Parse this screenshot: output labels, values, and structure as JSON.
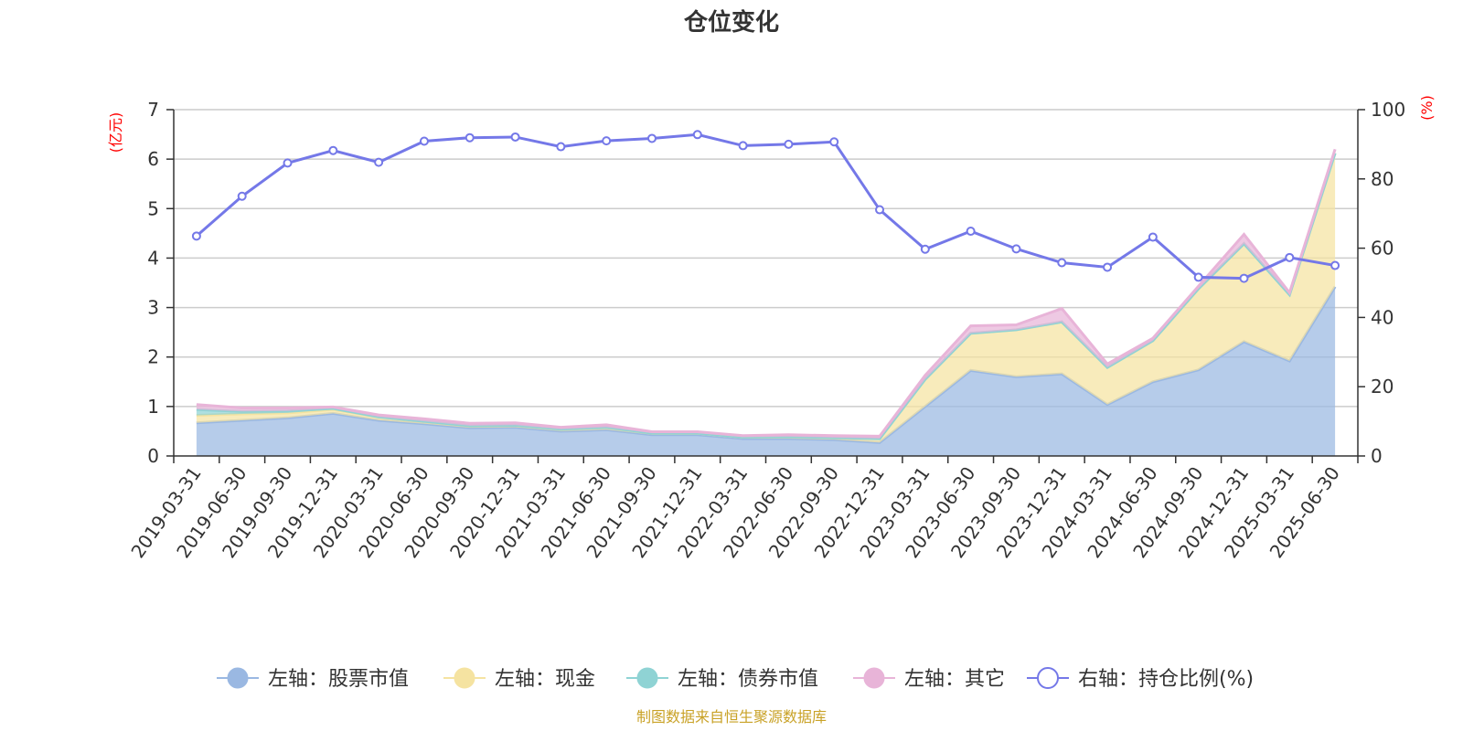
{
  "chart_data": {
    "type": "area",
    "title": "仓位变化",
    "left_unit": "(亿元)",
    "right_unit": "(%)",
    "source": "制图数据来自恒生聚源数据库",
    "ylim_left": [
      0,
      7
    ],
    "yticks_left": [
      "0",
      "1",
      "2",
      "3",
      "4",
      "5",
      "6",
      "7"
    ],
    "ylim_right": [
      0,
      100
    ],
    "yticks_right": [
      "0",
      "20",
      "40",
      "60",
      "80",
      "100"
    ],
    "grid": true,
    "legend_position": "bottom",
    "categories": [
      "2019-03-31",
      "2019-06-30",
      "2019-09-30",
      "2019-12-31",
      "2020-03-31",
      "2020-06-30",
      "2020-09-30",
      "2020-12-31",
      "2021-03-31",
      "2021-06-30",
      "2021-09-30",
      "2021-12-31",
      "2022-03-31",
      "2022-06-30",
      "2022-09-30",
      "2022-12-31",
      "2023-03-31",
      "2023-06-30",
      "2023-09-30",
      "2023-12-31",
      "2024-03-31",
      "2024-06-30",
      "2024-09-30",
      "2024-12-31",
      "2025-03-31",
      "2025-06-30"
    ],
    "series": [
      {
        "name": "左轴：股票市值",
        "axis": "left",
        "stack": true,
        "color": "#9ab8e2",
        "values": [
          0.67,
          0.72,
          0.77,
          0.86,
          0.72,
          0.65,
          0.57,
          0.58,
          0.5,
          0.53,
          0.43,
          0.43,
          0.35,
          0.35,
          0.33,
          0.27,
          1.0,
          1.73,
          1.6,
          1.66,
          1.04,
          1.5,
          1.74,
          2.31,
          1.92,
          3.42
        ]
      },
      {
        "name": "左轴：现金",
        "axis": "left",
        "stack": true,
        "color": "#f5e3a1",
        "values": [
          0.15,
          0.13,
          0.1,
          0.08,
          0.07,
          0.05,
          0.04,
          0.04,
          0.04,
          0.05,
          0.03,
          0.03,
          0.03,
          0.04,
          0.04,
          0.08,
          0.55,
          0.75,
          0.95,
          1.05,
          0.75,
          0.83,
          1.64,
          1.98,
          1.34,
          2.7
        ]
      },
      {
        "name": "左轴：债券市值",
        "axis": "left",
        "stack": true,
        "color": "#8fd3d4",
        "values": [
          0.12,
          0.05,
          0.04,
          0.02,
          0.0,
          0.0,
          0.0,
          0.0,
          0.0,
          0.0,
          0.0,
          0.0,
          0.0,
          0.0,
          0.0,
          0.0,
          0.0,
          0.0,
          0.0,
          0.0,
          0.0,
          0.0,
          0.0,
          0.0,
          0.0,
          0.0
        ]
      },
      {
        "name": "左轴：其它",
        "axis": "left",
        "stack": true,
        "color": "#e8b4d8",
        "values": [
          0.1,
          0.07,
          0.06,
          0.03,
          0.04,
          0.05,
          0.05,
          0.05,
          0.04,
          0.05,
          0.03,
          0.03,
          0.03,
          0.04,
          0.04,
          0.05,
          0.08,
          0.15,
          0.1,
          0.27,
          0.07,
          0.05,
          0.05,
          0.19,
          0.04,
          0.08
        ]
      },
      {
        "name": "右轴：持仓比例(%)",
        "axis": "right",
        "stack": false,
        "color": "#7478e8",
        "values": [
          63.5,
          75.0,
          84.6,
          88.2,
          84.8,
          90.9,
          91.9,
          92.1,
          89.3,
          91.0,
          91.7,
          92.8,
          89.6,
          90.0,
          90.7,
          71.1,
          59.7,
          64.9,
          59.8,
          55.8,
          54.5,
          63.2,
          51.6,
          51.3,
          57.3,
          55.0
        ]
      }
    ]
  }
}
